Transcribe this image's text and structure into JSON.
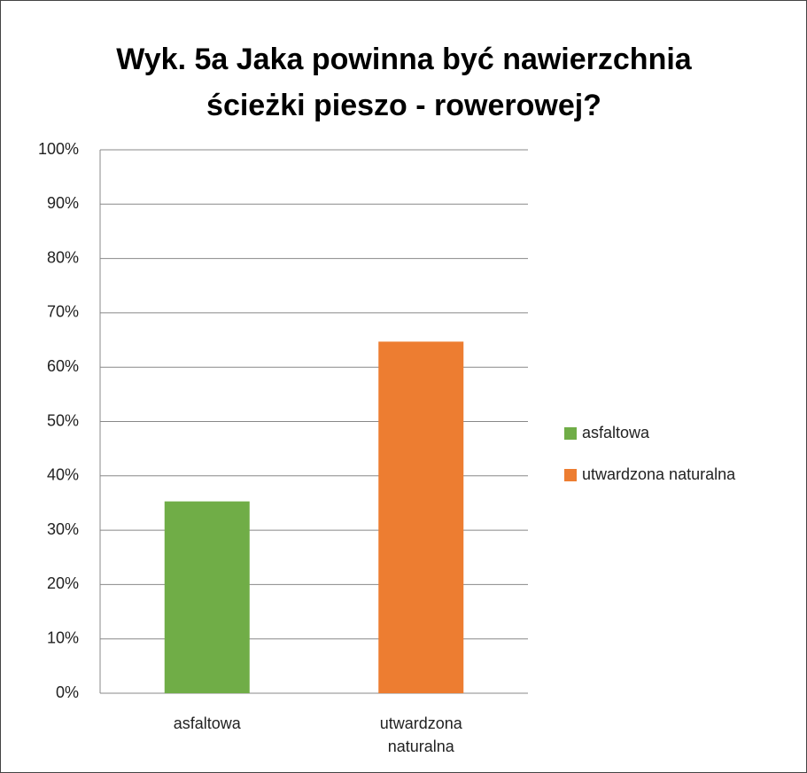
{
  "chart_data": {
    "type": "bar",
    "title": "Wyk. 5a Jaka powinna być nawierzchnia ścieżki pieszo - rowerowej?",
    "categories": [
      "asfaltowa",
      "utwardzona naturalna"
    ],
    "values": [
      35.3,
      64.7
    ],
    "colors": [
      "#70ad47",
      "#ed7d31"
    ],
    "ylim": [
      0,
      100
    ],
    "yticks": [
      {
        "value": 0,
        "label": "0%"
      },
      {
        "value": 10,
        "label": "10%"
      },
      {
        "value": 20,
        "label": "20%"
      },
      {
        "value": 30,
        "label": "30%"
      },
      {
        "value": 40,
        "label": "40%"
      },
      {
        "value": 50,
        "label": "50%"
      },
      {
        "value": 60,
        "label": "60%"
      },
      {
        "value": 70,
        "label": "70%"
      },
      {
        "value": 80,
        "label": "80%"
      },
      {
        "value": 90,
        "label": "90%"
      },
      {
        "value": 100,
        "label": "100%"
      }
    ],
    "grid": true,
    "legend": "right"
  }
}
